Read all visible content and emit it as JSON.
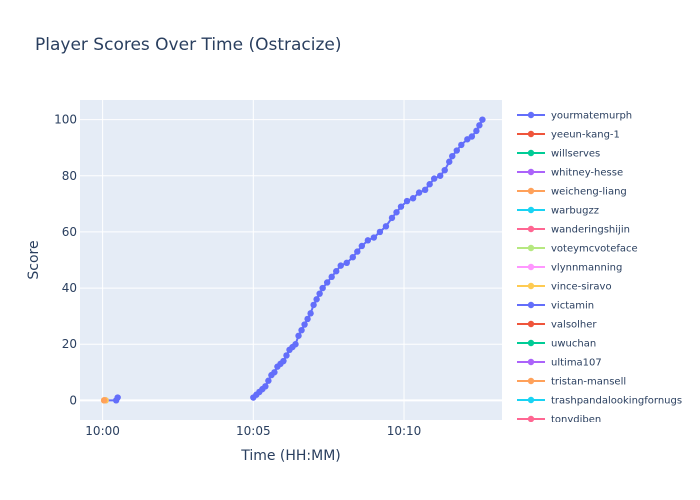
{
  "chart_data": {
    "type": "line",
    "title": "Player Scores Over Time (Ostracize)",
    "xlabel": "Time (HH:MM)",
    "ylabel": "Score",
    "x_tick_labels": [
      "10:00",
      "10:05",
      "10:10"
    ],
    "x_ticks_minutes": [
      0,
      5,
      10
    ],
    "xlim_minutes": [
      -0.75,
      13.25
    ],
    "ylim": [
      -7,
      107
    ],
    "y_ticks": [
      0,
      20,
      40,
      60,
      80,
      100
    ],
    "grid": true,
    "legend_position": "right",
    "series": [
      {
        "name": "yourmatemurph",
        "color": "#636efa",
        "points": [
          [
            0.1,
            0
          ],
          [
            0.45,
            0
          ],
          [
            0.5,
            1
          ]
        ]
      },
      {
        "name": "yeeun-kang-1",
        "color": "#EF553B",
        "points": []
      },
      {
        "name": "willserves",
        "color": "#00cc96",
        "points": []
      },
      {
        "name": "whitney-hesse",
        "color": "#ab63fa",
        "points": []
      },
      {
        "name": "weicheng-liang",
        "color": "#FFA15A",
        "points": []
      },
      {
        "name": "warbugzz",
        "color": "#19d3f3",
        "points": []
      },
      {
        "name": "wanderingshijin",
        "color": "#FF6692",
        "points": []
      },
      {
        "name": "voteymcvoteface",
        "color": "#B6E880",
        "points": []
      },
      {
        "name": "vlynnmanning",
        "color": "#FF97FF",
        "points": [
          [
            0.1,
            0
          ]
        ]
      },
      {
        "name": "vince-siravo",
        "color": "#FECB52",
        "points": [
          [
            0.05,
            0
          ],
          [
            0.1,
            0
          ]
        ]
      },
      {
        "name": "victamin",
        "color": "#636efa",
        "points": [
          [
            5.0,
            1
          ],
          [
            5.1,
            2
          ],
          [
            5.2,
            3
          ],
          [
            5.3,
            4
          ],
          [
            5.4,
            5
          ],
          [
            5.5,
            7
          ],
          [
            5.6,
            9
          ],
          [
            5.7,
            10
          ],
          [
            5.8,
            12
          ],
          [
            5.9,
            13
          ],
          [
            6.0,
            14
          ],
          [
            6.1,
            16
          ],
          [
            6.2,
            18
          ],
          [
            6.3,
            19
          ],
          [
            6.4,
            20
          ],
          [
            6.5,
            23
          ],
          [
            6.6,
            25
          ],
          [
            6.7,
            27
          ],
          [
            6.8,
            29
          ],
          [
            6.9,
            31
          ],
          [
            7.0,
            34
          ],
          [
            7.1,
            36
          ],
          [
            7.2,
            38
          ],
          [
            7.3,
            40
          ],
          [
            7.45,
            42
          ],
          [
            7.6,
            44
          ],
          [
            7.75,
            46
          ],
          [
            7.9,
            48
          ],
          [
            8.1,
            49
          ],
          [
            8.3,
            51
          ],
          [
            8.45,
            53
          ],
          [
            8.6,
            55
          ],
          [
            8.8,
            57
          ],
          [
            9.0,
            58
          ],
          [
            9.2,
            60
          ],
          [
            9.4,
            62
          ],
          [
            9.6,
            65
          ],
          [
            9.75,
            67
          ],
          [
            9.9,
            69
          ],
          [
            10.1,
            71
          ],
          [
            10.3,
            72
          ],
          [
            10.5,
            74
          ],
          [
            10.7,
            75
          ],
          [
            10.85,
            77
          ],
          [
            11.0,
            79
          ],
          [
            11.2,
            80
          ],
          [
            11.35,
            82
          ],
          [
            11.5,
            85
          ],
          [
            11.6,
            87
          ],
          [
            11.75,
            89
          ],
          [
            11.9,
            91
          ],
          [
            12.1,
            93
          ],
          [
            12.25,
            94
          ],
          [
            12.4,
            96
          ],
          [
            12.5,
            98
          ],
          [
            12.6,
            100
          ]
        ]
      },
      {
        "name": "valsolher",
        "color": "#EF553B",
        "points": []
      },
      {
        "name": "uwuchan",
        "color": "#00cc96",
        "points": []
      },
      {
        "name": "ultima107",
        "color": "#ab63fa",
        "points": []
      },
      {
        "name": "tristan-mansell",
        "color": "#FFA15A",
        "points": [
          [
            0.05,
            0
          ]
        ]
      },
      {
        "name": "trashpandalookingfornugs",
        "color": "#19d3f3",
        "points": []
      },
      {
        "name": "tonydiben",
        "color": "#FF6692",
        "points": []
      }
    ]
  }
}
